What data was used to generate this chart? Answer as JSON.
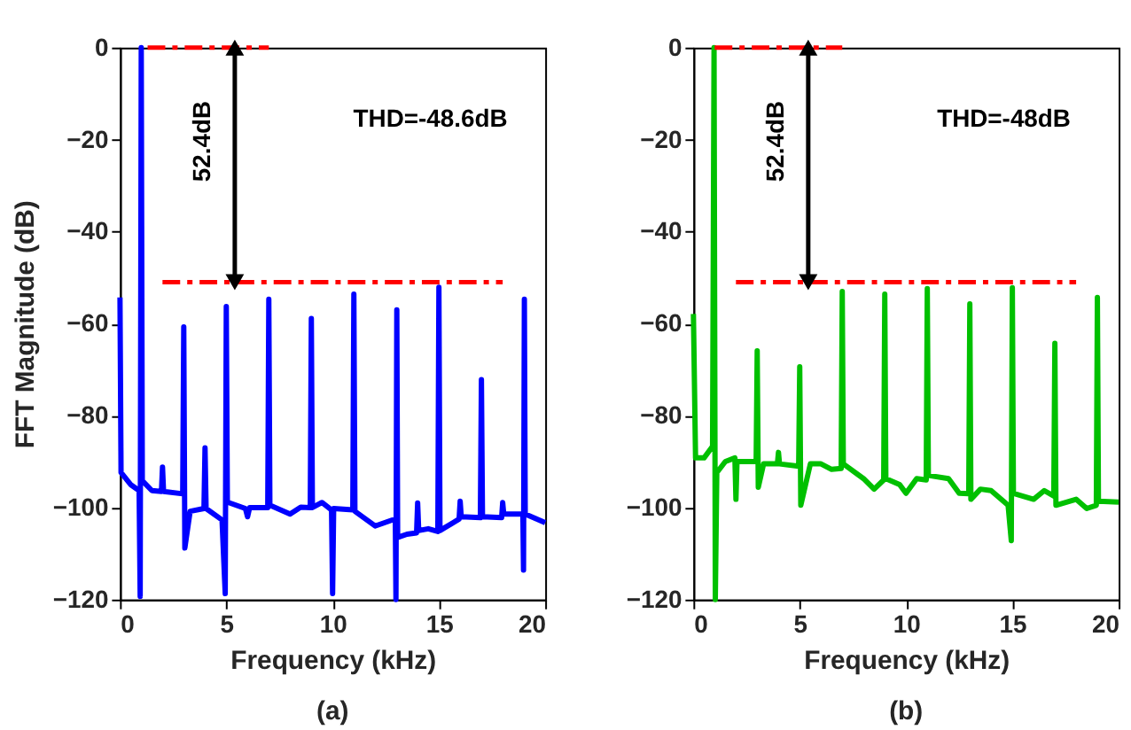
{
  "chart_data": [
    {
      "type": "line",
      "xlabel": "Frequency (kHz)",
      "ylabel": "FFT Magnitude (dB)",
      "xlim": [
        0,
        20
      ],
      "xticks": [
        0,
        5,
        10,
        15,
        20
      ],
      "ylim": [
        -120,
        0
      ],
      "yticks": [
        -120,
        -100,
        -80,
        -60,
        -40,
        -20,
        0
      ],
      "series": [
        {
          "color": "#0000ff",
          "x": [
            0,
            0.05,
            0.5,
            0.9,
            0.95,
            1.0,
            1.05,
            1.1,
            1.5,
            1.95,
            2.0,
            2.05,
            2.95,
            3.0,
            3.05,
            3.3,
            3.95,
            4.0,
            4.05,
            4.8,
            4.95,
            5.0,
            5.05,
            5.9,
            6.0,
            6.1,
            6.95,
            7.0,
            7.05,
            8.0,
            8.5,
            8.95,
            9.0,
            9.05,
            9.5,
            9.95,
            10.0,
            10.05,
            10.95,
            11.0,
            11.05,
            12.0,
            12.8,
            12.95,
            12.98,
            13.02,
            13.06,
            13.5,
            13.95,
            14.0,
            14.05,
            14.5,
            14.95,
            15.0,
            15.05,
            15.95,
            16.0,
            16.05,
            16.95,
            17.0,
            17.05,
            17.95,
            18.0,
            18.05,
            18.95,
            18.98,
            19.02,
            19.06,
            20.0
          ],
          "values": [
            -54.3,
            -92.4,
            -95,
            -96.3,
            -119.3,
            0,
            -94.4,
            -94.4,
            -96.3,
            -96.5,
            -91.2,
            -96.5,
            -97,
            -60.7,
            -108.8,
            -100.8,
            -100.2,
            -87,
            -100.2,
            -102.7,
            -118.7,
            -56.3,
            -98.8,
            -100.2,
            -102,
            -100,
            -100,
            -54.7,
            -99.5,
            -101.4,
            -99.9,
            -100,
            -58.9,
            -100,
            -98.9,
            -100.5,
            -118.7,
            -100.2,
            -100.5,
            -53.6,
            -100.8,
            -104,
            -102.7,
            -102.7,
            -120,
            -57,
            -106.5,
            -105.8,
            -105.5,
            -99,
            -105,
            -104.6,
            -105.2,
            -52.1,
            -105,
            -102.5,
            -98.6,
            -102,
            -102.2,
            -72.2,
            -102,
            -102.2,
            -98.9,
            -101.4,
            -101.4,
            -113.6,
            -54.7,
            -101.4,
            -103.3
          ]
        },
        {
          "color": "#ff0000",
          "line_style": "dashed",
          "x": [
            1.3,
            7.0
          ],
          "values": [
            0,
            0
          ]
        },
        {
          "color": "#ff0000",
          "line_style": "dashed",
          "x": [
            2.0,
            18.0
          ],
          "values": [
            -51,
            -51
          ]
        }
      ],
      "annotations": [
        "THD=-48.6dB",
        "(a)",
        "52.4dB"
      ]
    },
    {
      "type": "line",
      "xlabel": "Frequency (kHz)",
      "xlim": [
        0,
        20
      ],
      "xticks": [
        0,
        5,
        10,
        15,
        20
      ],
      "ylim": [
        -120,
        0
      ],
      "yticks": [
        -120,
        -100,
        -80,
        -60,
        -40,
        -20,
        0
      ],
      "series": [
        {
          "color": "#00c000",
          "x": [
            0,
            0.1,
            0.5,
            0.9,
            0.97,
            1.03,
            1.1,
            1.5,
            1.95,
            2.0,
            2.05,
            2.95,
            3.0,
            3.05,
            3.3,
            3.95,
            4.0,
            4.05,
            4.95,
            5.0,
            5.05,
            5.5,
            6.0,
            6.5,
            6.95,
            7.0,
            7.05,
            8.0,
            8.5,
            8.95,
            9.0,
            9.05,
            9.7,
            10.0,
            10.5,
            10.95,
            11.0,
            11.05,
            12.0,
            12.5,
            12.95,
            13.0,
            13.05,
            13.5,
            14.0,
            14.8,
            14.95,
            15.0,
            15.05,
            16.0,
            16.5,
            16.95,
            17.0,
            17.05,
            18.0,
            18.5,
            18.95,
            19.0,
            19.05,
            20.0
          ],
          "values": [
            -57.9,
            -89.2,
            -89.2,
            -86.7,
            0,
            -120,
            -92.4,
            -90,
            -89.2,
            -98.2,
            -90,
            -90,
            -65.9,
            -95.6,
            -90.5,
            -90.5,
            -88,
            -90.5,
            -91,
            -69.4,
            -99.5,
            -90.5,
            -90.5,
            -91.7,
            -91.5,
            -53,
            -90.5,
            -93.7,
            -96,
            -94,
            -53.6,
            -93.7,
            -95,
            -96.9,
            -93.7,
            -94,
            -52.4,
            -93,
            -93.7,
            -96.9,
            -97,
            -55.7,
            -98.2,
            -96,
            -96.3,
            -99.5,
            -107.2,
            -52.2,
            -96.9,
            -98.2,
            -96.3,
            -97.5,
            -64.3,
            -99.5,
            -98.2,
            -100.2,
            -99.5,
            -54.3,
            -98.6,
            -98.8
          ]
        },
        {
          "color": "#ff0000",
          "line_style": "dashed",
          "x": [
            1.0,
            7.0
          ],
          "values": [
            0,
            0
          ]
        },
        {
          "color": "#ff0000",
          "line_style": "dashed",
          "x": [
            2.0,
            18.0
          ],
          "values": [
            -51,
            -51
          ]
        }
      ],
      "annotations": [
        "THD=-48dB",
        "(b)",
        "52.4dB"
      ]
    }
  ]
}
